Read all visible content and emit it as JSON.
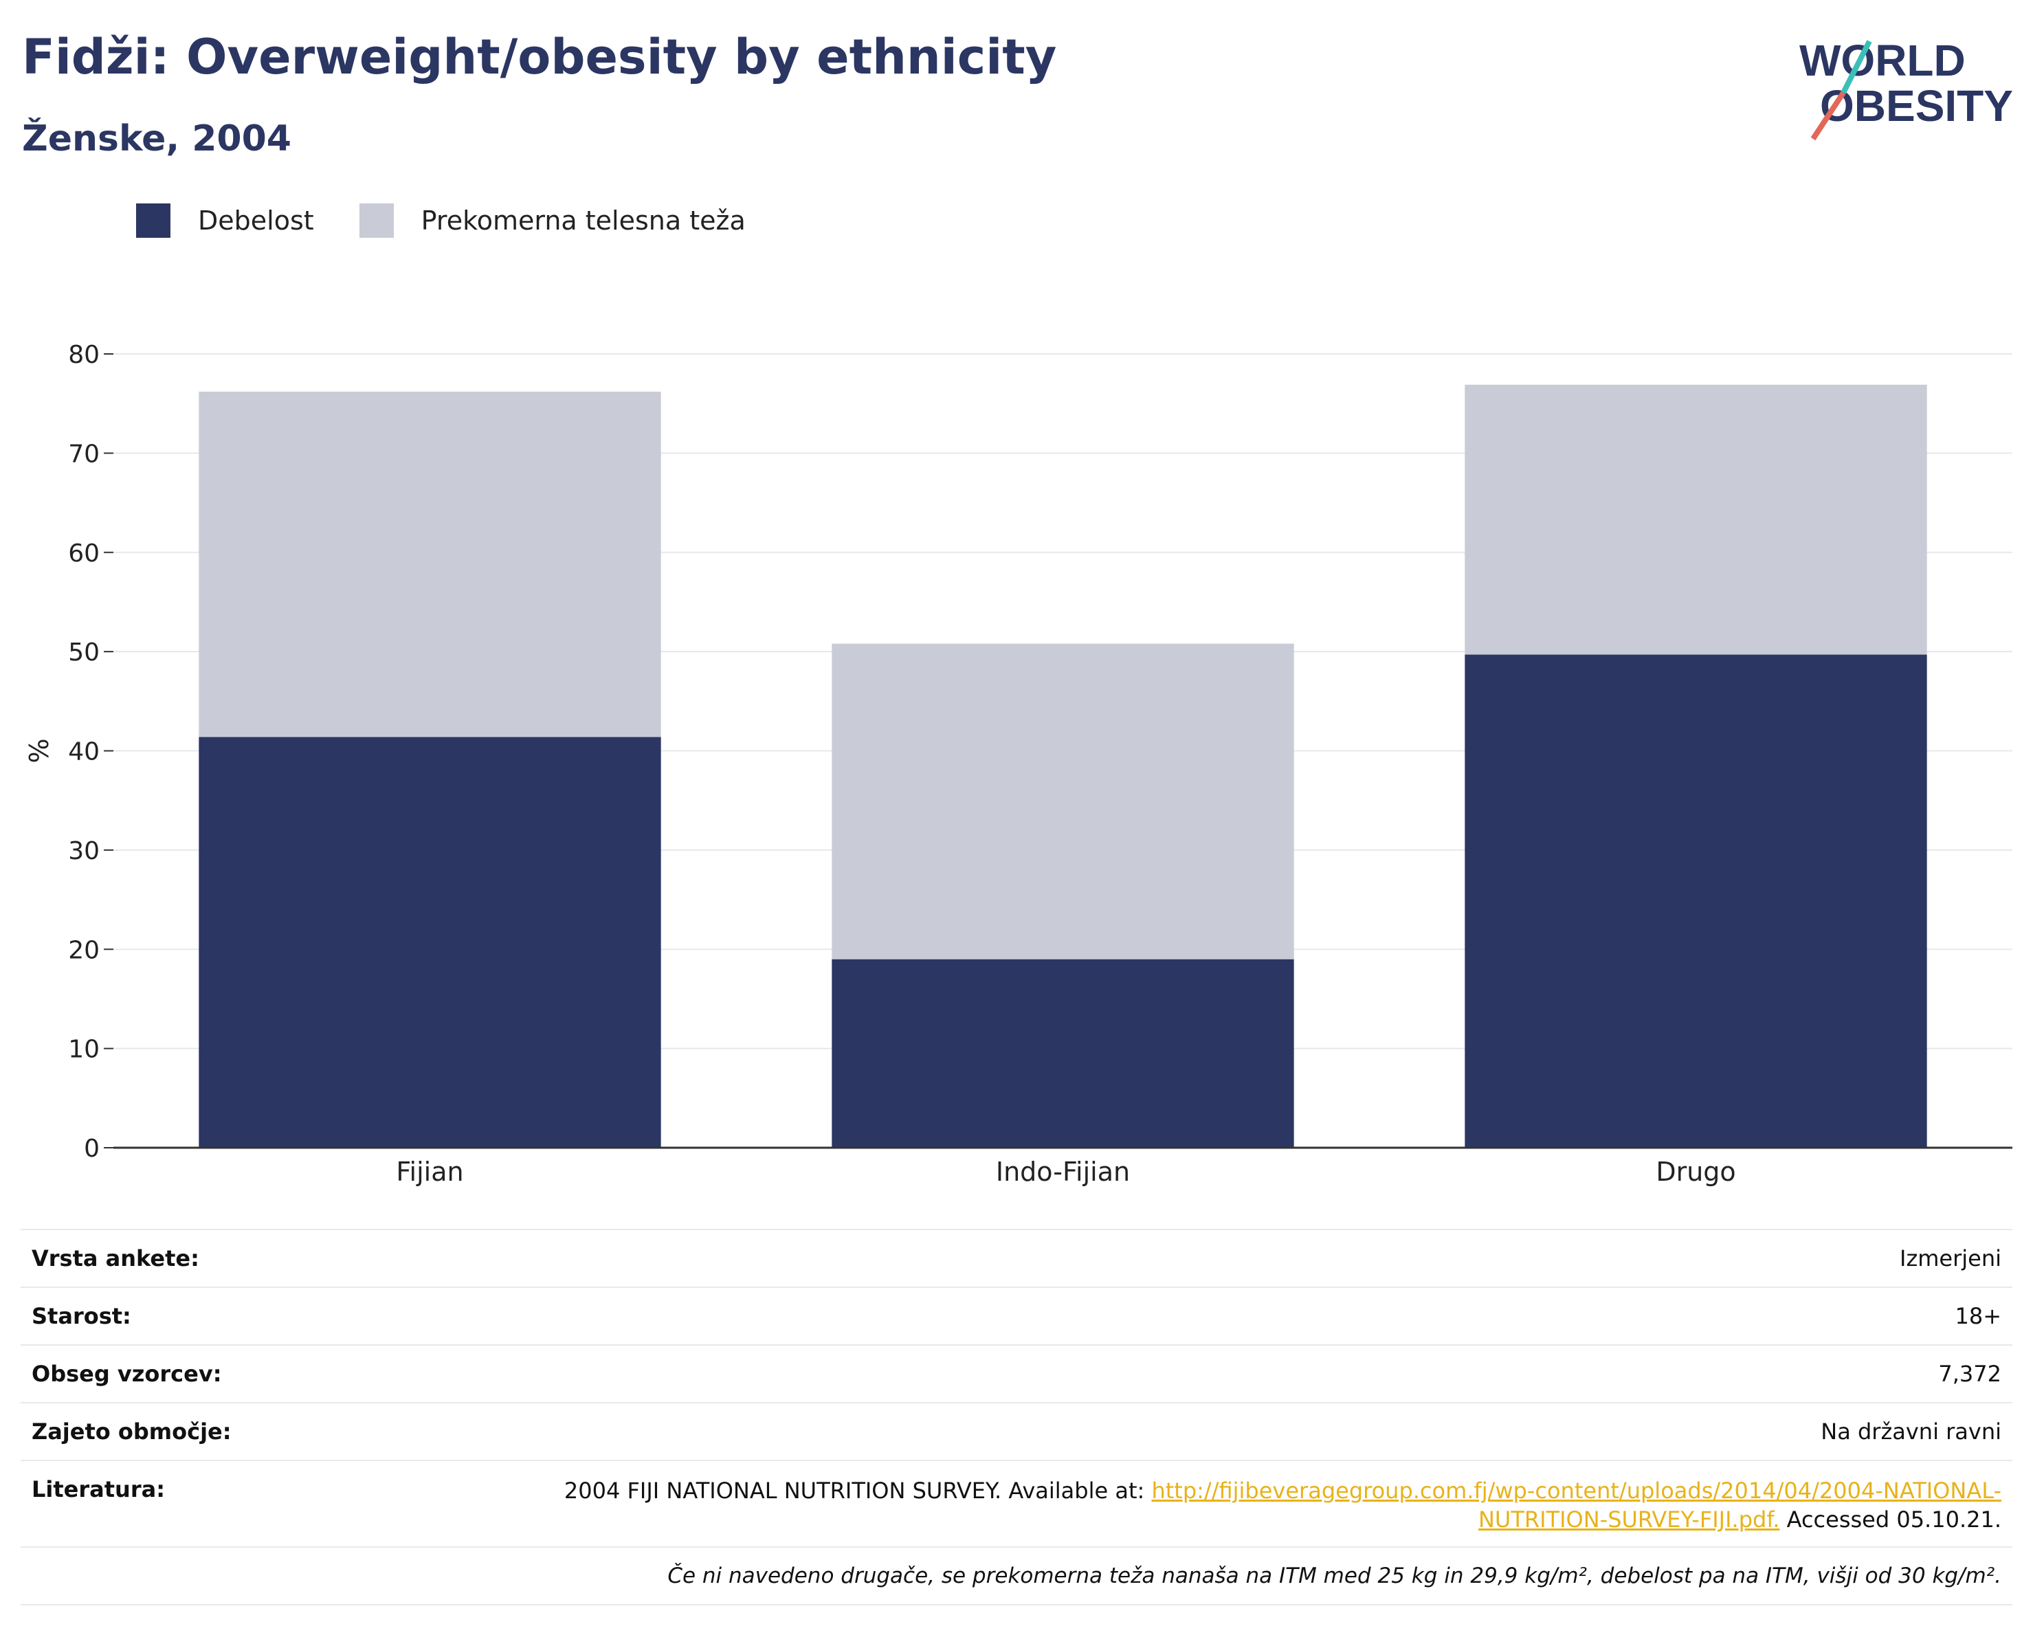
{
  "header": {
    "title": "Fidži: Overweight/obesity by ethnicity",
    "subtitle": "Ženske, 2004",
    "logo_line1": "WORLD",
    "logo_line2": "OBESITY"
  },
  "legend": [
    {
      "label": "Debelost",
      "color": "#2b3663"
    },
    {
      "label": "Prekomerna telesna teža",
      "color": "#c9cbd6"
    }
  ],
  "chart_data": {
    "type": "bar",
    "stacked": true,
    "categories": [
      "Fijian",
      "Indo-Fijian",
      "Drugo"
    ],
    "series": [
      {
        "name": "Debelost",
        "color": "#2b3663",
        "values": [
          41.4,
          19.0,
          49.7
        ]
      },
      {
        "name": "Prekomerna telesna teža",
        "color": "#c9cbd6",
        "values": [
          34.8,
          31.8,
          27.2
        ]
      }
    ],
    "ylabel": "%",
    "ylim": [
      0,
      80
    ],
    "yticks": [
      0,
      10,
      20,
      30,
      40,
      50,
      60,
      70,
      80
    ],
    "grid": true,
    "legend_position": "top-left"
  },
  "meta": {
    "survey_type_label": "Vrsta ankete:",
    "survey_type_value": "Izmerjeni",
    "age_label": "Starost:",
    "age_value": "18+",
    "sample_label": "Obseg vzorcev:",
    "sample_value": "7,372",
    "area_label": "Zajeto območje:",
    "area_value": "Na državni ravni",
    "reference_label": "Literatura:",
    "reference_text": "2004 FIJI NATIONAL NUTRITION SURVEY. Available at:",
    "reference_link_1": "http://fijibeveragegroup.com.fj/wp-content/uploads/2014/04/2004-NATIONAL-",
    "reference_link_2": "NUTRITION-SURVEY-FIJI.pdf.",
    "reference_accessed": "Accessed 05.10.21.",
    "note": "Če ni navedeno drugače, se prekomerna teža nanaša na ITM med 25 kg in 29,9 kg/m², debelost pa na ITM, višji od 30 kg/m²."
  }
}
